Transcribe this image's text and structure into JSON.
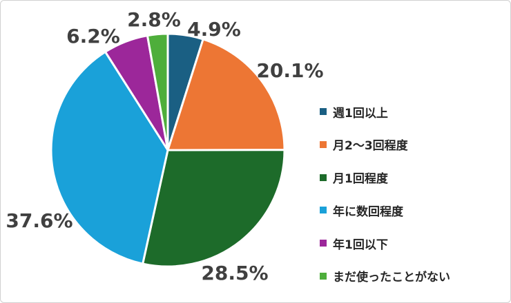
{
  "chart_data": {
    "type": "pie",
    "categories": [
      "週1回以上",
      "月2～3回程度",
      "月1回程度",
      "年に数回程度",
      "年1回以下",
      "まだ使ったことがない"
    ],
    "values": [
      4.9,
      20.1,
      28.5,
      37.6,
      6.2,
      2.8
    ],
    "labels": [
      "4.9%",
      "20.1%",
      "28.5%",
      "37.6%",
      "6.2%",
      "2.8%"
    ],
    "colors": [
      "#1a5f83",
      "#ed7634",
      "#1d6b2a",
      "#1aa1d9",
      "#9c279a",
      "#4eae3b"
    ],
    "title": "",
    "legend_position": "right"
  }
}
